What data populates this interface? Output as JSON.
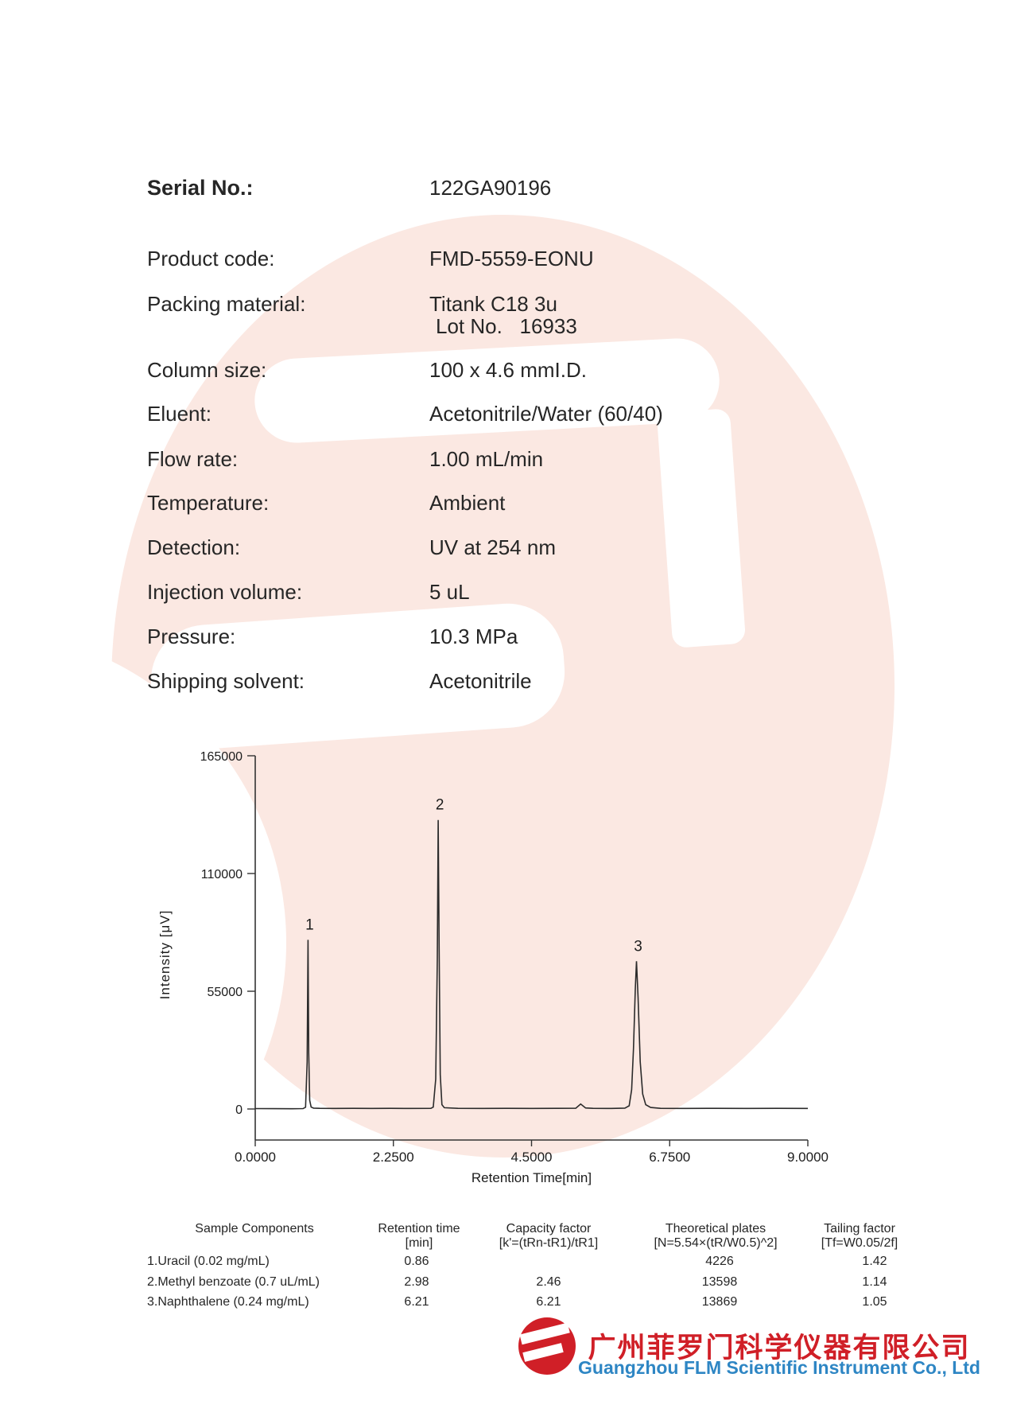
{
  "colors": {
    "watermark_pink": "#fbe8e2",
    "brand_red": "#d01f27",
    "brand_blue": "#2e86c4",
    "trace": "#2b2b2b"
  },
  "fields": {
    "rows": [
      {
        "label": "Serial No.:",
        "value": "122GA90196",
        "bold": true
      },
      {
        "label": "Product code:",
        "value": "FMD-5559-EONU"
      },
      {
        "label": "Packing material:",
        "value": "Titank C18 3u",
        "value2": "Lot No.   16933"
      },
      {
        "label": "Column size:",
        "value": "100 x 4.6 mmI.D."
      },
      {
        "label": "Eluent:",
        "value": "Acetonitrile/Water (60/40)"
      },
      {
        "label": "Flow rate:",
        "value": "1.00 mL/min"
      },
      {
        "label": "Temperature:",
        "value": "Ambient"
      },
      {
        "label": "Detection:",
        "value": "UV at 254 nm"
      },
      {
        "label": "Injection volume:",
        "value": "5 uL"
      },
      {
        "label": "Pressure:",
        "value": "10.3 MPa"
      },
      {
        "label": "Shipping solvent:",
        "value": "Acetonitrile"
      }
    ]
  },
  "chart_data": {
    "type": "line",
    "title": "",
    "xlabel": "Retention Time[min]",
    "ylabel": "Intensity [μV]",
    "xlim": [
      0,
      9
    ],
    "ylim": [
      0,
      165000
    ],
    "grid": false,
    "xticks": [
      {
        "value": 0.0,
        "label": "0.0000"
      },
      {
        "value": 2.25,
        "label": "2.2500"
      },
      {
        "value": 4.5,
        "label": "4.5000"
      },
      {
        "value": 6.75,
        "label": "6.7500"
      },
      {
        "value": 9.0,
        "label": "9.0000"
      }
    ],
    "yticks": [
      {
        "value": 0,
        "label": "0"
      },
      {
        "value": 55000,
        "label": "55000"
      },
      {
        "value": 110000,
        "label": "110000"
      },
      {
        "value": 165000,
        "label": "165000"
      }
    ],
    "peaks": [
      {
        "label": "1",
        "rt": 0.86,
        "intensity": 79000
      },
      {
        "label": "2",
        "rt": 2.98,
        "intensity": 135000
      },
      {
        "label": "3",
        "rt": 6.21,
        "intensity": 69000
      }
    ],
    "trace": [
      [
        0,
        200
      ],
      [
        0.3,
        150
      ],
      [
        0.6,
        120
      ],
      [
        0.78,
        180
      ],
      [
        0.82,
        800
      ],
      [
        0.845,
        22000
      ],
      [
        0.86,
        79000
      ],
      [
        0.872,
        26000
      ],
      [
        0.887,
        4000
      ],
      [
        0.91,
        900
      ],
      [
        0.95,
        400
      ],
      [
        1.05,
        300
      ],
      [
        1.3,
        250
      ],
      [
        1.6,
        300
      ],
      [
        1.9,
        250
      ],
      [
        2.2,
        300
      ],
      [
        2.5,
        250
      ],
      [
        2.86,
        300
      ],
      [
        2.9,
        900
      ],
      [
        2.94,
        14000
      ],
      [
        2.965,
        70000
      ],
      [
        2.98,
        135000
      ],
      [
        2.995,
        75000
      ],
      [
        3.013,
        16000
      ],
      [
        3.04,
        2000
      ],
      [
        3.08,
        600
      ],
      [
        3.3,
        300
      ],
      [
        3.7,
        250
      ],
      [
        4.1,
        300
      ],
      [
        4.5,
        250
      ],
      [
        4.9,
        300
      ],
      [
        5.22,
        350
      ],
      [
        5.3,
        2300
      ],
      [
        5.38,
        500
      ],
      [
        5.5,
        300
      ],
      [
        5.8,
        250
      ],
      [
        6.02,
        400
      ],
      [
        6.09,
        1500
      ],
      [
        6.13,
        9000
      ],
      [
        6.16,
        28000
      ],
      [
        6.19,
        56000
      ],
      [
        6.21,
        69000
      ],
      [
        6.235,
        52000
      ],
      [
        6.27,
        22000
      ],
      [
        6.31,
        7000
      ],
      [
        6.36,
        2000
      ],
      [
        6.44,
        700
      ],
      [
        6.6,
        300
      ],
      [
        7.0,
        250
      ],
      [
        7.5,
        300
      ],
      [
        8.0,
        250
      ],
      [
        8.5,
        300
      ],
      [
        9.0,
        250
      ]
    ]
  },
  "table": {
    "headers": [
      {
        "line1": "Sample Components",
        "line2": ""
      },
      {
        "line1": "Retention time",
        "line2": "[min]"
      },
      {
        "line1": "Capacity factor",
        "line2": "[k'=(tRn-tR1)/tR1]"
      },
      {
        "line1": "Theoretical plates",
        "line2": "[N=5.54×(tR/W0.5)^2]"
      },
      {
        "line1": "Tailing factor",
        "line2": "[Tf=W0.05/2f]"
      }
    ],
    "rows": [
      {
        "component": "1.Uracil (0.02 mg/mL)",
        "retention": "0.86",
        "capacity": "",
        "plates": "4226",
        "tailing": "1.42"
      },
      {
        "component": "2.Methyl benzoate (0.7 uL/mL)",
        "retention": "2.98",
        "capacity": "2.46",
        "plates": "13598",
        "tailing": "1.14"
      },
      {
        "component": "3.Naphthalene (0.24 mg/mL)",
        "retention": "6.21",
        "capacity": "6.21",
        "plates": "13869",
        "tailing": "1.05"
      }
    ]
  },
  "footer": {
    "company_cn": "广州菲罗门科学仪器有限公司",
    "company_en": "Guangzhou FLM Scientific Instrument Co., Ltd"
  }
}
